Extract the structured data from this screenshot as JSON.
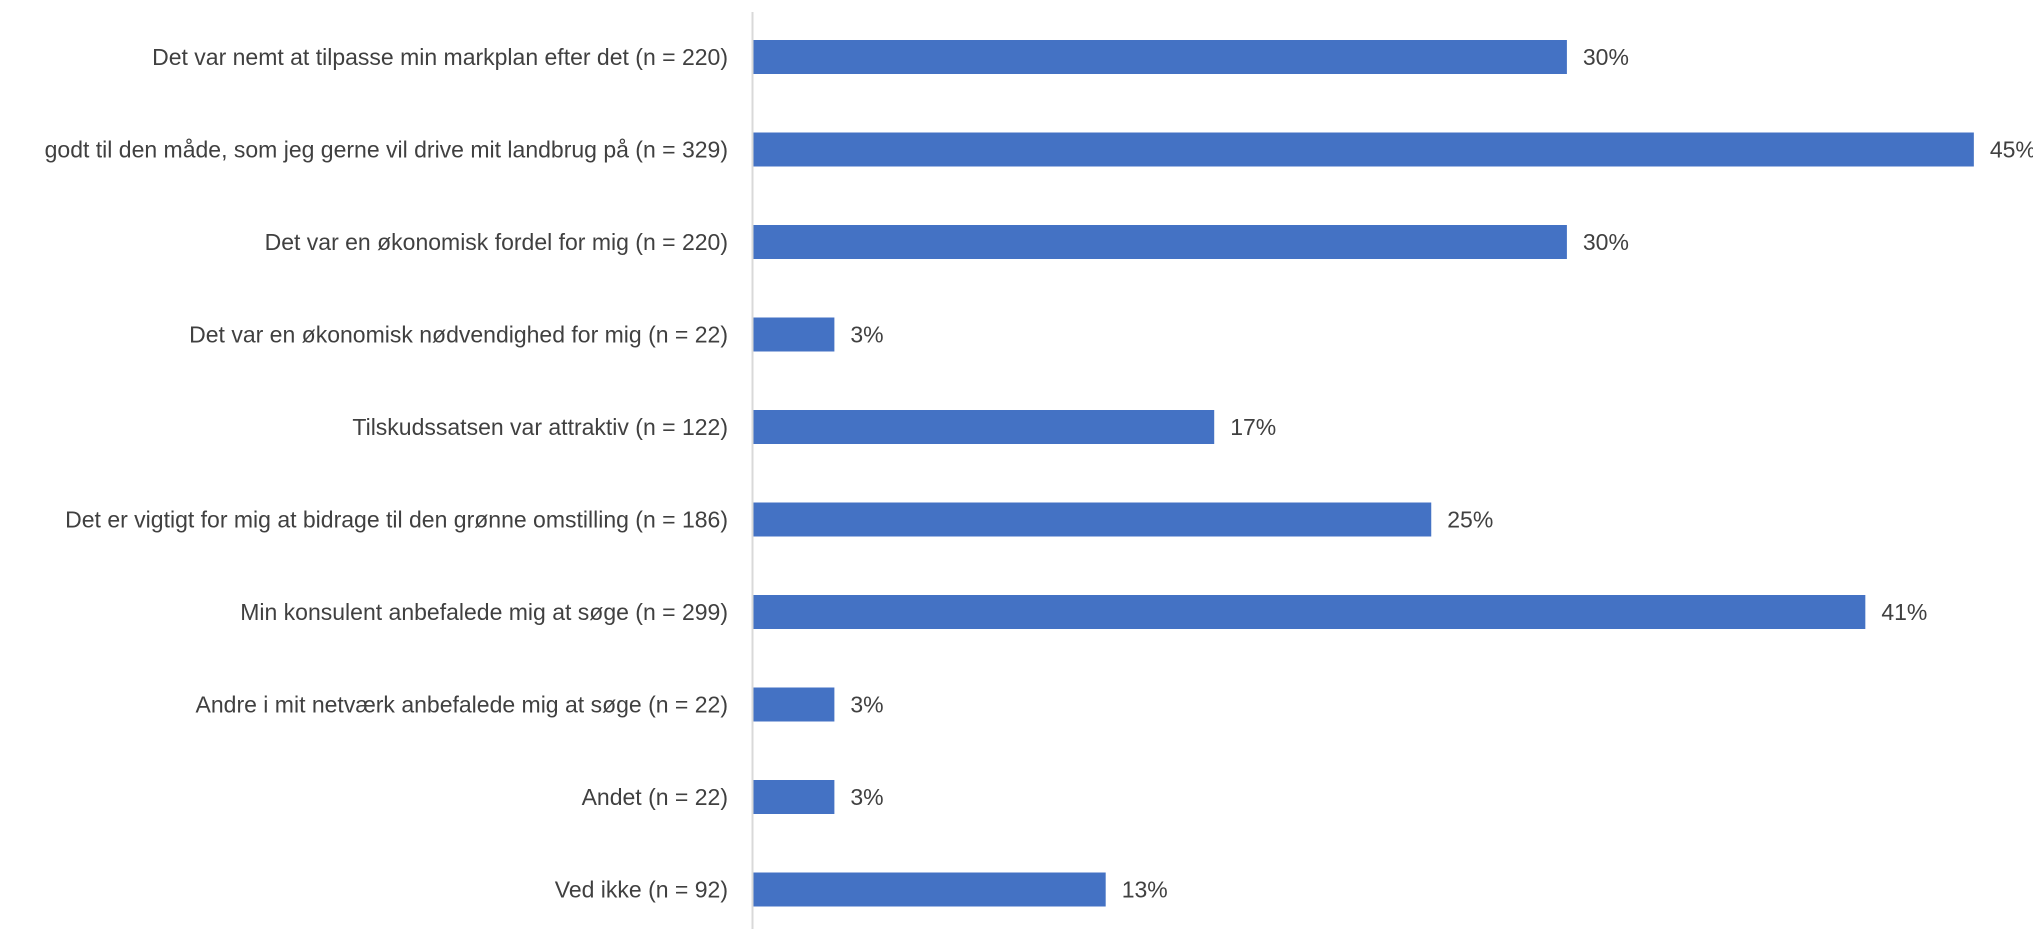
{
  "colors": {
    "bar": "#4472C4",
    "axis": "#D9D9D9",
    "text": "#404040"
  },
  "chart_data": {
    "type": "bar",
    "orientation": "horizontal",
    "title": "",
    "xlabel": "",
    "ylabel": "",
    "xlim": [
      0,
      0.46
    ],
    "grid": false,
    "legend": "none",
    "categories": [
      "Det var nemt at tilpasse min markplan efter det (n = 220)",
      "godt til den måde, som jeg gerne vil drive mit landbrug på (n = 329)",
      "Det var en økonomisk fordel for mig (n = 220)",
      "Det var en økonomisk nødvendighed for mig (n = 22)",
      "Tilskudssatsen var attraktiv (n = 122)",
      "Det er vigtigt for mig at bidrage til den grønne omstilling (n = 186)",
      "Min konsulent anbefalede mig at søge (n = 299)",
      "Andre i mit netværk anbefalede mig at søge (n = 22)",
      "Andet (n = 22)",
      "Ved ikke (n = 92)"
    ],
    "values": [
      0.3,
      0.45,
      0.3,
      0.03,
      0.17,
      0.25,
      0.41,
      0.03,
      0.03,
      0.13
    ],
    "data_labels": [
      "30%",
      "45%",
      "30%",
      "3%",
      "17%",
      "25%",
      "41%",
      "3%",
      "3%",
      "13%"
    ]
  }
}
